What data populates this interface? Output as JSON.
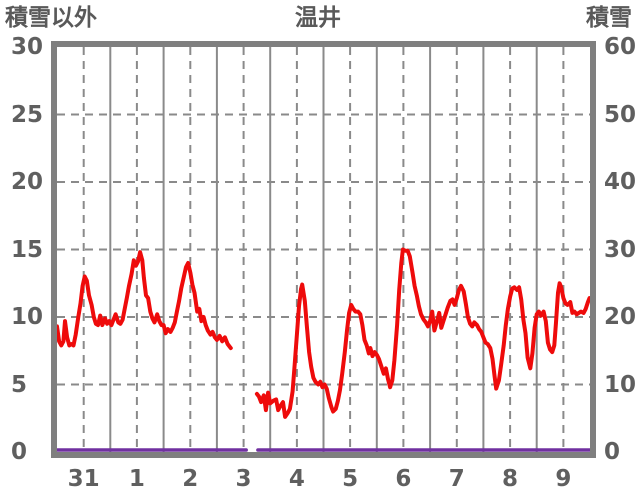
{
  "chart_data": {
    "type": "line",
    "title": "温井",
    "titles": {
      "top_left": "積雪以外",
      "top_center": "温井",
      "top_right": "積雪"
    },
    "left_axis": {
      "title": "積雪以外",
      "min": 0,
      "max": 30,
      "ticks": [
        30,
        25,
        20,
        15,
        10,
        5,
        0
      ]
    },
    "right_axis": {
      "title": "積雪",
      "min": 0,
      "max": 60,
      "ticks": [
        60,
        50,
        40,
        30,
        20,
        10,
        0
      ]
    },
    "x_axis": {
      "labels": [
        "31",
        "1",
        "2",
        "3",
        "4",
        "5",
        "6",
        "7",
        "8",
        "9"
      ],
      "unit": "day",
      "note": "solid gridlines at day boundaries, dashed gridlines at mid-day; x values below are in days from start of day 31"
    },
    "grid": {
      "h_dashed_left_values": [
        5,
        10,
        15,
        20,
        25
      ],
      "legend": "none"
    },
    "series": [
      {
        "id": "non-snow",
        "name": "積雪以外",
        "axis": "left",
        "color": "#ee0b0b",
        "width": 4,
        "gap": "day 3 ~06h to ~18h (missing data)",
        "segments": [
          [
            [
              0,
              9.3
            ],
            [
              0.04,
              8.2
            ],
            [
              0.08,
              7.9
            ],
            [
              0.12,
              8.2
            ],
            [
              0.15,
              9.7
            ],
            [
              0.19,
              8.5
            ],
            [
              0.23,
              7.9
            ],
            [
              0.27,
              8.0
            ],
            [
              0.31,
              7.9
            ],
            [
              0.35,
              8.7
            ],
            [
              0.4,
              10.0
            ],
            [
              0.44,
              11.0
            ],
            [
              0.48,
              12.3
            ],
            [
              0.52,
              13.0
            ],
            [
              0.56,
              12.7
            ],
            [
              0.6,
              11.6
            ],
            [
              0.65,
              10.9
            ],
            [
              0.69,
              10.0
            ],
            [
              0.73,
              9.5
            ],
            [
              0.77,
              9.4
            ],
            [
              0.81,
              10.1
            ],
            [
              0.85,
              9.4
            ],
            [
              0.9,
              9.9
            ],
            [
              0.94,
              9.5
            ],
            [
              0.98,
              9.7
            ],
            [
              1.02,
              9.4
            ],
            [
              1.06,
              9.8
            ],
            [
              1.1,
              10.2
            ],
            [
              1.15,
              9.6
            ],
            [
              1.19,
              9.5
            ],
            [
              1.23,
              9.8
            ],
            [
              1.27,
              10.6
            ],
            [
              1.31,
              11.4
            ],
            [
              1.35,
              12.3
            ],
            [
              1.4,
              13.2
            ],
            [
              1.44,
              14.2
            ],
            [
              1.48,
              13.8
            ],
            [
              1.52,
              14.1
            ],
            [
              1.56,
              14.8
            ],
            [
              1.6,
              14.2
            ],
            [
              1.63,
              12.9
            ],
            [
              1.67,
              11.6
            ],
            [
              1.71,
              11.4
            ],
            [
              1.75,
              10.4
            ],
            [
              1.79,
              9.9
            ],
            [
              1.83,
              9.6
            ],
            [
              1.88,
              10.2
            ],
            [
              1.92,
              9.7
            ],
            [
              1.96,
              9.4
            ],
            [
              2,
              9.4
            ],
            [
              2.04,
              8.8
            ],
            [
              2.08,
              9.1
            ],
            [
              2.13,
              8.9
            ],
            [
              2.17,
              9.2
            ],
            [
              2.21,
              9.6
            ],
            [
              2.25,
              10.4
            ],
            [
              2.29,
              11.2
            ],
            [
              2.33,
              12.1
            ],
            [
              2.38,
              13.0
            ],
            [
              2.42,
              13.7
            ],
            [
              2.46,
              14.0
            ],
            [
              2.5,
              13.3
            ],
            [
              2.54,
              12.4
            ],
            [
              2.58,
              11.8
            ],
            [
              2.63,
              10.4
            ],
            [
              2.67,
              10.6
            ],
            [
              2.71,
              9.7
            ],
            [
              2.75,
              10.0
            ],
            [
              2.79,
              9.4
            ],
            [
              2.83,
              9.0
            ],
            [
              2.88,
              8.7
            ],
            [
              2.92,
              8.9
            ],
            [
              2.96,
              8.5
            ],
            [
              3,
              8.3
            ],
            [
              3.05,
              8.6
            ],
            [
              3.1,
              8.2
            ],
            [
              3.15,
              8.5
            ],
            [
              3.2,
              8.0
            ],
            [
              3.26,
              7.7
            ]
          ],
          [
            [
              3.75,
              4.3
            ],
            [
              3.79,
              4.1
            ],
            [
              3.83,
              3.7
            ],
            [
              3.88,
              4.2
            ],
            [
              3.92,
              3.1
            ],
            [
              3.96,
              4.4
            ],
            [
              4,
              3.6
            ],
            [
              4.06,
              3.8
            ],
            [
              4.11,
              3.9
            ],
            [
              4.15,
              3.1
            ],
            [
              4.19,
              3.4
            ],
            [
              4.24,
              3.7
            ],
            [
              4.28,
              2.6
            ],
            [
              4.33,
              2.9
            ],
            [
              4.37,
              3.2
            ],
            [
              4.42,
              4.5
            ],
            [
              4.46,
              6.5
            ],
            [
              4.5,
              8.7
            ],
            [
              4.54,
              10.8
            ],
            [
              4.58,
              12.1
            ],
            [
              4.6,
              12.4
            ],
            [
              4.65,
              11.2
            ],
            [
              4.69,
              9.2
            ],
            [
              4.73,
              7.4
            ],
            [
              4.77,
              6.3
            ],
            [
              4.81,
              5.5
            ],
            [
              4.85,
              5.2
            ],
            [
              4.9,
              5.0
            ],
            [
              4.94,
              5.2
            ],
            [
              4.98,
              4.8
            ],
            [
              5.02,
              5.0
            ],
            [
              5.06,
              4.7
            ],
            [
              5.1,
              4.0
            ],
            [
              5.15,
              3.3
            ],
            [
              5.18,
              3.0
            ],
            [
              5.23,
              3.2
            ],
            [
              5.27,
              3.8
            ],
            [
              5.31,
              4.6
            ],
            [
              5.35,
              5.8
            ],
            [
              5.4,
              7.4
            ],
            [
              5.44,
              9.0
            ],
            [
              5.48,
              10.3
            ],
            [
              5.52,
              10.9
            ],
            [
              5.56,
              10.6
            ],
            [
              5.6,
              10.4
            ],
            [
              5.65,
              10.4
            ],
            [
              5.69,
              10.2
            ],
            [
              5.73,
              9.4
            ],
            [
              5.77,
              8.3
            ],
            [
              5.81,
              7.9
            ],
            [
              5.85,
              7.3
            ],
            [
              5.88,
              7.7
            ],
            [
              5.92,
              7.1
            ],
            [
              5.96,
              7.4
            ],
            [
              6,
              7.2
            ],
            [
              6.04,
              6.9
            ],
            [
              6.08,
              6.4
            ],
            [
              6.13,
              5.8
            ],
            [
              6.17,
              6.2
            ],
            [
              6.21,
              5.4
            ],
            [
              6.25,
              4.8
            ],
            [
              6.29,
              5.3
            ],
            [
              6.33,
              6.8
            ],
            [
              6.38,
              9.4
            ],
            [
              6.42,
              12.0
            ],
            [
              6.46,
              14.0
            ],
            [
              6.49,
              15.0
            ],
            [
              6.54,
              14.9
            ],
            [
              6.58,
              14.9
            ],
            [
              6.62,
              14.5
            ],
            [
              6.67,
              13.3
            ],
            [
              6.71,
              12.3
            ],
            [
              6.75,
              11.6
            ],
            [
              6.79,
              10.8
            ],
            [
              6.83,
              10.2
            ],
            [
              6.88,
              9.8
            ],
            [
              6.92,
              9.6
            ],
            [
              6.96,
              9.3
            ],
            [
              7,
              9.7
            ],
            [
              7.04,
              10.4
            ],
            [
              7.08,
              9.0
            ],
            [
              7.13,
              9.7
            ],
            [
              7.17,
              10.3
            ],
            [
              7.21,
              9.2
            ],
            [
              7.25,
              9.7
            ],
            [
              7.29,
              10.2
            ],
            [
              7.33,
              10.7
            ],
            [
              7.38,
              11.2
            ],
            [
              7.42,
              11.3
            ],
            [
              7.46,
              10.9
            ],
            [
              7.5,
              11.4
            ],
            [
              7.54,
              12.0
            ],
            [
              7.58,
              12.3
            ],
            [
              7.63,
              11.9
            ],
            [
              7.67,
              11.0
            ],
            [
              7.71,
              10.0
            ],
            [
              7.75,
              9.5
            ],
            [
              7.79,
              9.3
            ],
            [
              7.83,
              9.6
            ],
            [
              7.88,
              9.4
            ],
            [
              7.92,
              9.1
            ],
            [
              7.96,
              8.9
            ],
            [
              8,
              8.5
            ],
            [
              8.04,
              8.1
            ],
            [
              8.08,
              8.0
            ],
            [
              8.13,
              7.7
            ],
            [
              8.17,
              6.9
            ],
            [
              8.21,
              5.6
            ],
            [
              8.24,
              4.7
            ],
            [
              8.29,
              5.3
            ],
            [
              8.33,
              6.4
            ],
            [
              8.38,
              7.9
            ],
            [
              8.42,
              9.4
            ],
            [
              8.46,
              10.6
            ],
            [
              8.5,
              11.5
            ],
            [
              8.54,
              12.1
            ],
            [
              8.58,
              12.2
            ],
            [
              8.63,
              12.0
            ],
            [
              8.67,
              12.2
            ],
            [
              8.71,
              11.3
            ],
            [
              8.75,
              9.8
            ],
            [
              8.79,
              8.8
            ],
            [
              8.83,
              7.0
            ],
            [
              8.88,
              6.2
            ],
            [
              8.92,
              7.3
            ],
            [
              8.96,
              9.2
            ],
            [
              9,
              10.2
            ],
            [
              9.04,
              10.4
            ],
            [
              9.08,
              10.1
            ],
            [
              9.13,
              10.4
            ],
            [
              9.17,
              9.7
            ],
            [
              9.21,
              8.1
            ],
            [
              9.25,
              7.6
            ],
            [
              9.29,
              7.4
            ],
            [
              9.33,
              7.9
            ],
            [
              9.36,
              9.5
            ],
            [
              9.4,
              11.8
            ],
            [
              9.43,
              12.5
            ],
            [
              9.46,
              12.2
            ],
            [
              9.5,
              11.4
            ],
            [
              9.54,
              11.0
            ],
            [
              9.58,
              10.9
            ],
            [
              9.63,
              11.1
            ],
            [
              9.67,
              10.3
            ],
            [
              9.71,
              10.4
            ],
            [
              9.75,
              10.2
            ],
            [
              9.79,
              10.3
            ],
            [
              9.83,
              10.4
            ],
            [
              9.88,
              10.3
            ],
            [
              9.92,
              10.6
            ],
            [
              9.96,
              11.1
            ],
            [
              9.99,
              11.4
            ]
          ]
        ]
      },
      {
        "id": "snow-depth",
        "name": "積雪",
        "axis": "right",
        "color": "#7030a0",
        "width": 3.5,
        "constant_value": 0,
        "segments": [
          [
            [
              0,
              0
            ],
            [
              3.55,
              0
            ]
          ],
          [
            [
              3.77,
              0
            ],
            [
              10,
              0
            ]
          ]
        ]
      }
    ],
    "colors": {
      "frame": "#7f7f7f",
      "grid": "#8a8a8a",
      "labels": "#5f5f5f",
      "background": "#ffffff"
    }
  }
}
